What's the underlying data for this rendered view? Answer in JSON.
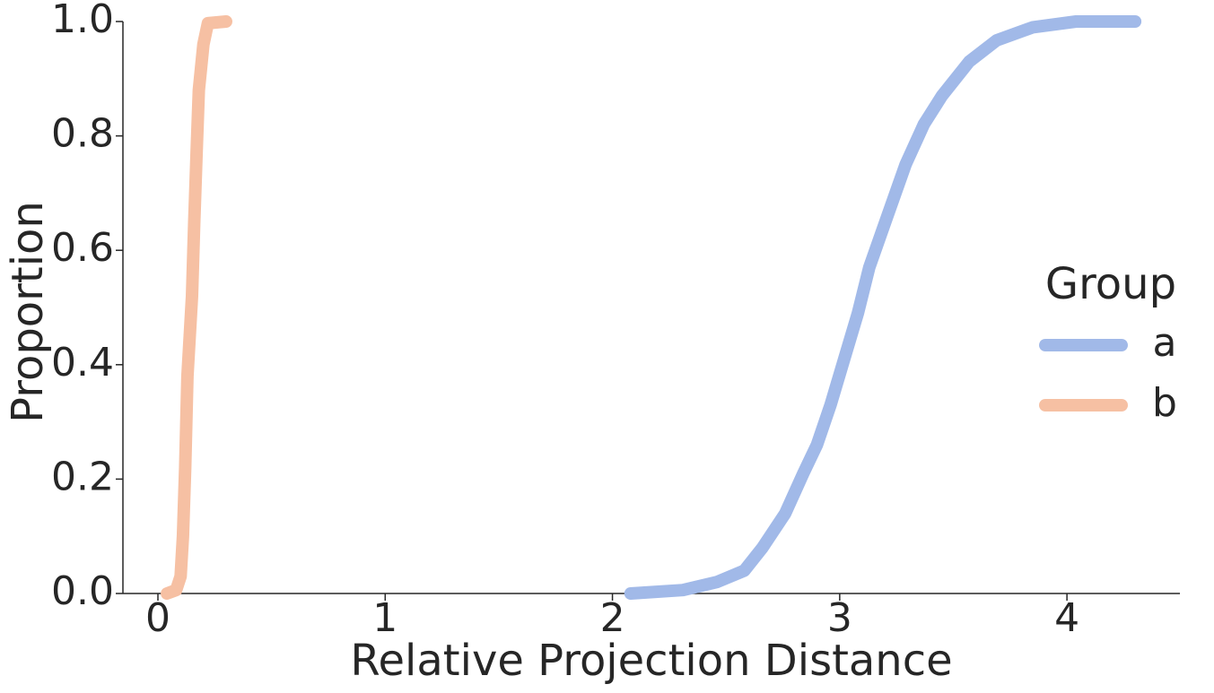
{
  "chart_data": {
    "type": "line",
    "xlabel": "Relative Projection Distance",
    "ylabel": "Proportion",
    "legend_title": "Group",
    "legend_loc": "right",
    "xlim": [
      -0.154,
      4.497
    ],
    "ylim": [
      0,
      1
    ],
    "xticks": [
      0,
      1,
      2,
      3,
      4
    ],
    "yticks": [
      {
        "value": 0,
        "label": "0.0"
      },
      0.2,
      0.4,
      0.6,
      0.8,
      {
        "value": 1,
        "label": "1.0"
      }
    ],
    "series": [
      {
        "name": "a",
        "color": "#a1b9e8",
        "x": [
          2.08,
          2.31,
          2.46,
          2.58,
          2.66,
          2.76,
          2.84,
          2.9,
          2.96,
          3.02,
          3.08,
          3.13,
          3.21,
          3.29,
          3.37,
          3.45,
          3.57,
          3.69,
          3.85,
          4.04,
          4.3
        ],
        "values": [
          0,
          0.006,
          0.02,
          0.04,
          0.08,
          0.14,
          0.21,
          0.26,
          0.33,
          0.41,
          0.49,
          0.57,
          0.66,
          0.75,
          0.82,
          0.87,
          0.93,
          0.967,
          0.99,
          1.0,
          1.0
        ]
      },
      {
        "name": "b",
        "color": "#f6c0a3",
        "x": [
          0.04,
          0.08,
          0.1,
          0.11,
          0.12,
          0.13,
          0.15,
          0.16,
          0.17,
          0.18,
          0.2,
          0.22,
          0.3
        ],
        "values": [
          0,
          0.006,
          0.03,
          0.1,
          0.22,
          0.38,
          0.52,
          0.65,
          0.77,
          0.88,
          0.96,
          0.997,
          1.0
        ]
      }
    ]
  }
}
